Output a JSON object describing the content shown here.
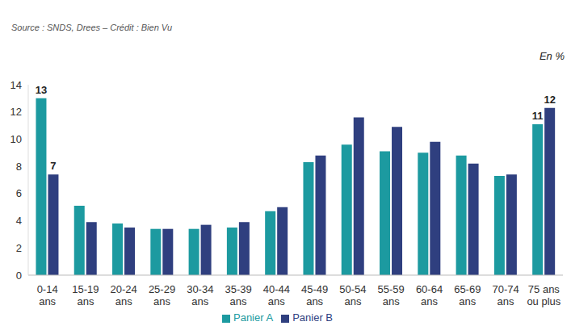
{
  "chart_data": {
    "type": "bar",
    "source": "Source : SNDS, Drees – Crédit : Bien Vu",
    "y_label": "En %",
    "categories": [
      "0-14 ans",
      "15-19 ans",
      "20-24 ans",
      "25-29 ans",
      "30-34 ans",
      "35-39 ans",
      "40-44 ans",
      "45-49 ans",
      "50-54 ans",
      "55-59 ans",
      "60-64 ans",
      "65-69 ans",
      "70-74 ans",
      "75 ans ou plus"
    ],
    "series": [
      {
        "name": "Panier A",
        "color": "#1c9aa0",
        "values": [
          13,
          5.1,
          3.8,
          3.4,
          3.4,
          3.5,
          4.7,
          8.3,
          9.6,
          9.1,
          9.0,
          8.8,
          7.3,
          11.1
        ],
        "value_labels": [
          "13",
          null,
          null,
          null,
          null,
          null,
          null,
          null,
          null,
          null,
          null,
          null,
          null,
          "11"
        ]
      },
      {
        "name": "Panier B",
        "color": "#2f3f7f",
        "values": [
          7.4,
          3.9,
          3.5,
          3.4,
          3.7,
          3.9,
          5.0,
          8.8,
          11.6,
          10.9,
          9.8,
          8.2,
          7.4,
          12.3
        ],
        "value_labels": [
          "7",
          null,
          null,
          null,
          null,
          null,
          null,
          null,
          null,
          null,
          null,
          null,
          null,
          "12"
        ]
      }
    ],
    "ylim": [
      0,
      14
    ],
    "yticks": [
      0,
      2,
      4,
      6,
      8,
      10,
      12,
      14
    ],
    "grid": false,
    "legend": "bottom",
    "data_labels": true
  }
}
